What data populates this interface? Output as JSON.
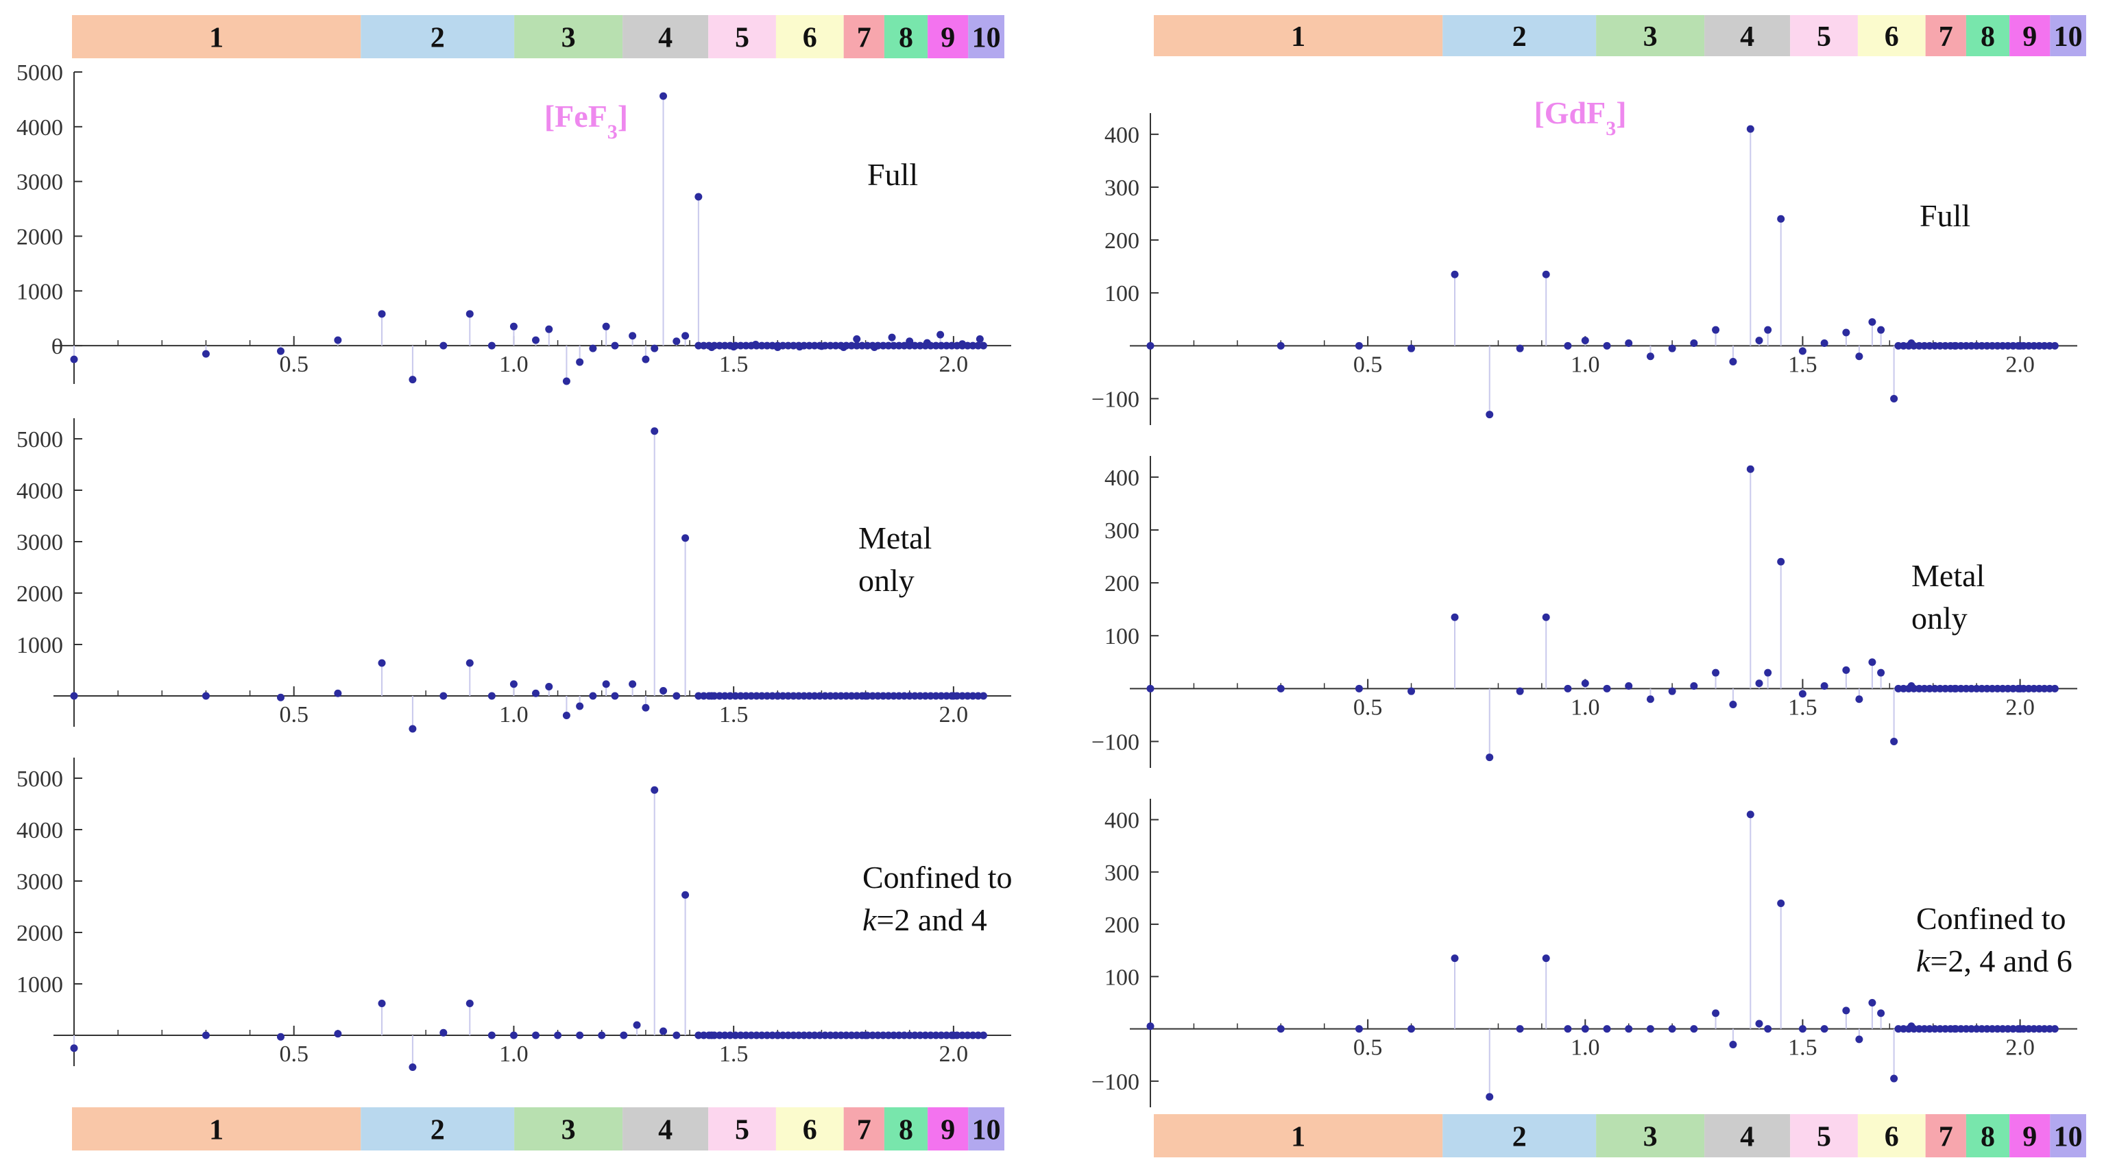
{
  "figure": {
    "band_labels": [
      "1",
      "2",
      "3",
      "4",
      "5",
      "6",
      "7",
      "8",
      "9",
      "10"
    ],
    "band_widths": [
      0.32,
      0.17,
      0.12,
      0.095,
      0.075,
      0.075,
      0.045,
      0.048,
      0.045,
      0.04
    ],
    "band_colors": [
      "#f9c7a8",
      "#b9d8ee",
      "#b8e0b0",
      "#cccccc",
      "#fcd6ee",
      "#fbfbcd",
      "#f7a6ad",
      "#78e6ac",
      "#f373ef",
      "#b2a8ef"
    ],
    "marker_color": "#2b2b9e",
    "stem_color": "#c9c9ec",
    "compound_color": "#ee88ee"
  },
  "chart_data": [
    {
      "type": "scatter",
      "column": "left",
      "panel": "top",
      "compound_sub": "3",
      "compound_main": "[FeF",
      "compound_end": "]",
      "annotation": [
        "Full"
      ],
      "xlim": [
        0,
        2.1
      ],
      "ylim": [
        -700,
        5000
      ],
      "yticks": [
        "5000",
        "4000",
        "3000",
        "2000",
        "1000",
        "0"
      ],
      "ytick_values": [
        5000,
        4000,
        3000,
        2000,
        1000,
        0
      ],
      "xticks": [
        "0.5",
        "1.0",
        "1.5",
        "2.0"
      ],
      "xtick_values": [
        0.5,
        1.0,
        1.5,
        2.0
      ],
      "x": [
        0.0,
        0.3,
        0.47,
        0.6,
        0.7,
        0.77,
        0.84,
        0.9,
        0.95,
        1.0,
        1.05,
        1.08,
        1.12,
        1.15,
        1.18,
        1.21,
        1.23,
        1.27,
        1.3,
        1.32,
        1.34,
        1.37,
        1.39,
        1.42,
        1.45,
        1.5,
        1.55,
        1.6,
        1.65,
        1.7,
        1.75,
        1.78,
        1.82,
        1.86,
        1.9,
        1.94,
        1.97,
        2.02,
        2.06
      ],
      "y": [
        -250,
        -150,
        -100,
        100,
        580,
        -620,
        0,
        580,
        0,
        350,
        100,
        300,
        -650,
        -300,
        -50,
        350,
        0,
        180,
        -250,
        -50,
        4560,
        80,
        180,
        2720,
        -30,
        -20,
        20,
        -30,
        -20,
        -10,
        -30,
        120,
        -30,
        150,
        80,
        50,
        200,
        30,
        120
      ]
    },
    {
      "type": "scatter",
      "column": "left",
      "panel": "middle",
      "annotation": [
        "Metal",
        "only"
      ],
      "xlim": [
        0,
        2.1
      ],
      "ylim": [
        -600,
        5400
      ],
      "yticks": [
        "5000",
        "4000",
        "3000",
        "2000",
        "1000"
      ],
      "ytick_values": [
        5000,
        4000,
        3000,
        2000,
        1000
      ],
      "xticks": [
        "0.5",
        "1.0",
        "1.5",
        "2.0"
      ],
      "xtick_values": [
        0.5,
        1.0,
        1.5,
        2.0
      ],
      "x": [
        0.0,
        0.3,
        0.47,
        0.6,
        0.7,
        0.77,
        0.84,
        0.9,
        0.95,
        1.0,
        1.05,
        1.08,
        1.12,
        1.15,
        1.18,
        1.21,
        1.23,
        1.27,
        1.3,
        1.32,
        1.34,
        1.37,
        1.39,
        1.45,
        1.6,
        1.8,
        2.0
      ],
      "y": [
        0,
        0,
        -30,
        50,
        640,
        -640,
        0,
        640,
        0,
        230,
        50,
        180,
        -380,
        -200,
        0,
        230,
        0,
        230,
        -230,
        5150,
        100,
        0,
        3070,
        0,
        0,
        0,
        0
      ]
    },
    {
      "type": "scatter",
      "column": "left",
      "panel": "bottom",
      "annotation": [
        "Confined to",
        "k=2 and 4"
      ],
      "xlim": [
        0,
        2.1
      ],
      "ylim": [
        -600,
        5400
      ],
      "yticks": [
        "5000",
        "4000",
        "3000",
        "2000",
        "1000"
      ],
      "ytick_values": [
        5000,
        4000,
        3000,
        2000,
        1000
      ],
      "xticks": [
        "0.5",
        "1.0",
        "1.5",
        "2.0"
      ],
      "xtick_values": [
        0.5,
        1.0,
        1.5,
        2.0
      ],
      "x": [
        0.0,
        0.3,
        0.47,
        0.6,
        0.7,
        0.77,
        0.84,
        0.9,
        0.95,
        1.0,
        1.05,
        1.1,
        1.15,
        1.2,
        1.25,
        1.28,
        1.32,
        1.34,
        1.37,
        1.39,
        1.45,
        1.6,
        1.8,
        2.0
      ],
      "y": [
        -250,
        0,
        -30,
        30,
        620,
        -620,
        50,
        620,
        0,
        0,
        0,
        0,
        0,
        0,
        0,
        200,
        4770,
        80,
        0,
        2730,
        0,
        0,
        0,
        0
      ]
    },
    {
      "type": "scatter",
      "column": "right",
      "panel": "top",
      "compound_sub": "3",
      "compound_main": "[GdF",
      "compound_end": "]",
      "annotation": [
        "Full"
      ],
      "xlim": [
        0,
        2.1
      ],
      "ylim": [
        -150,
        440
      ],
      "yticks": [
        "400",
        "300",
        "200",
        "100",
        "−100"
      ],
      "ytick_values": [
        400,
        300,
        200,
        100,
        -100
      ],
      "xticks": [
        "0.5",
        "1.0",
        "1.5",
        "2.0"
      ],
      "xtick_values": [
        0.5,
        1.0,
        1.5,
        2.0
      ],
      "x": [
        0.0,
        0.3,
        0.48,
        0.6,
        0.7,
        0.78,
        0.85,
        0.91,
        0.96,
        1.0,
        1.05,
        1.1,
        1.15,
        1.2,
        1.25,
        1.3,
        1.34,
        1.38,
        1.4,
        1.42,
        1.45,
        1.5,
        1.55,
        1.6,
        1.63,
        1.66,
        1.68,
        1.71,
        1.75,
        1.85,
        2.0
      ],
      "y": [
        0,
        0,
        0,
        -5,
        135,
        -130,
        -5,
        135,
        0,
        10,
        0,
        5,
        -20,
        -5,
        5,
        30,
        -30,
        410,
        10,
        30,
        240,
        -10,
        5,
        25,
        -20,
        45,
        30,
        -100,
        5,
        0,
        0
      ]
    },
    {
      "type": "scatter",
      "column": "right",
      "panel": "middle",
      "annotation": [
        "Metal",
        "only"
      ],
      "xlim": [
        0,
        2.1
      ],
      "ylim": [
        -150,
        440
      ],
      "yticks": [
        "400",
        "300",
        "200",
        "100",
        "−100"
      ],
      "ytick_values": [
        400,
        300,
        200,
        100,
        -100
      ],
      "xticks": [
        "0.5",
        "1.0",
        "1.5",
        "2.0"
      ],
      "xtick_values": [
        0.5,
        1.0,
        1.5,
        2.0
      ],
      "x": [
        0.0,
        0.3,
        0.48,
        0.6,
        0.7,
        0.78,
        0.85,
        0.91,
        0.96,
        1.0,
        1.05,
        1.1,
        1.15,
        1.2,
        1.25,
        1.3,
        1.34,
        1.38,
        1.4,
        1.42,
        1.45,
        1.5,
        1.55,
        1.6,
        1.63,
        1.66,
        1.68,
        1.71,
        1.75,
        1.85,
        2.0
      ],
      "y": [
        0,
        0,
        0,
        -5,
        135,
        -130,
        -5,
        135,
        0,
        10,
        0,
        5,
        -20,
        -5,
        5,
        30,
        -30,
        415,
        10,
        30,
        240,
        -10,
        5,
        35,
        -20,
        50,
        30,
        -100,
        5,
        0,
        0
      ]
    },
    {
      "type": "scatter",
      "column": "right",
      "panel": "bottom",
      "annotation": [
        "Confined to",
        "k=2,  4 and 6"
      ],
      "xlim": [
        0,
        2.1
      ],
      "ylim": [
        -150,
        440
      ],
      "yticks": [
        "400",
        "300",
        "200",
        "100",
        "−100"
      ],
      "ytick_values": [
        400,
        300,
        200,
        100,
        -100
      ],
      "xticks": [
        "0.5",
        "1.0",
        "1.5",
        "2.0"
      ],
      "xtick_values": [
        0.5,
        1.0,
        1.5,
        2.0
      ],
      "x": [
        0.0,
        0.3,
        0.48,
        0.6,
        0.7,
        0.78,
        0.85,
        0.91,
        0.96,
        1.0,
        1.05,
        1.1,
        1.15,
        1.2,
        1.25,
        1.3,
        1.34,
        1.38,
        1.4,
        1.42,
        1.45,
        1.5,
        1.55,
        1.6,
        1.63,
        1.66,
        1.68,
        1.71,
        1.75,
        1.85,
        2.0
      ],
      "y": [
        5,
        0,
        0,
        0,
        135,
        -130,
        0,
        135,
        0,
        0,
        0,
        0,
        0,
        0,
        0,
        30,
        -30,
        410,
        10,
        0,
        240,
        0,
        0,
        35,
        -20,
        50,
        30,
        -95,
        5,
        0,
        0
      ]
    }
  ]
}
